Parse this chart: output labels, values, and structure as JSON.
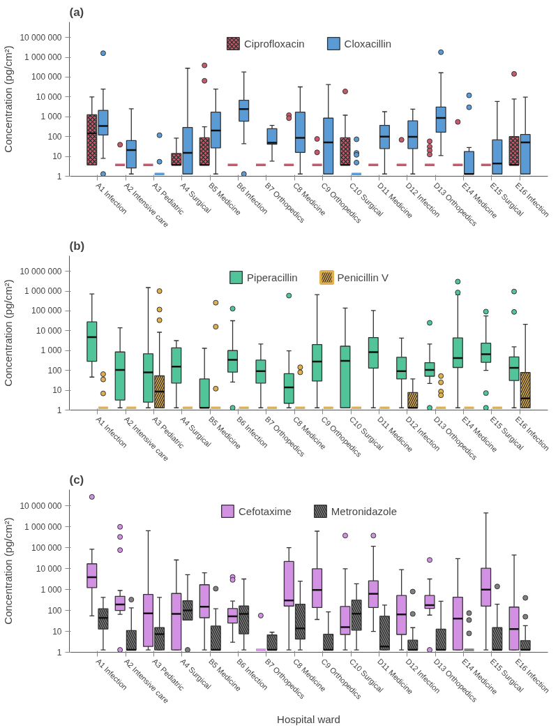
{
  "chart_data": [
    {
      "type": "box",
      "title": "(a)",
      "ylabel": "Concentration (pg/cm²)",
      "log": true,
      "grid": false,
      "legend": "top",
      "ylim": [
        1,
        60000000
      ],
      "yticks": [
        1,
        10,
        100,
        {
          "value": 1000,
          "label": "1 000"
        },
        {
          "value": 10000,
          "label": "10 000"
        },
        {
          "value": 100000,
          "label": "100 000"
        },
        {
          "value": 1000000,
          "label": "1 000 000"
        },
        {
          "value": 10000000,
          "label": "10 000 000"
        }
      ],
      "categories": [
        "A1 Infection",
        "A2 Intensive care",
        "A3 Pediatric",
        "A4 Surgical",
        "B5 Medicine",
        "B6 Infection",
        "B7 Orthopedics",
        "C8 Medicine",
        "C9 Orthopedics",
        "C10 Surgical",
        "D11 Medicine",
        "D12 Infection",
        "D13 Orthopedics",
        "E14 Medicine",
        "E15 Surgical",
        "E16 Infection"
      ],
      "series": [
        {
          "name": "Ciprofloxacin",
          "color": "#c8596a",
          "boxes": [
            {
              "low": 3.7,
              "q1": 3.7,
              "median": 145,
              "q3": 1250,
              "high": 10000
            },
            {
              "low": 3.7,
              "q1": 3.7,
              "median": 3.7,
              "q3": 3.7,
              "high": 3.7,
              "outliers": [
                39
              ]
            },
            {
              "low": 3.7,
              "q1": 3.7,
              "median": 3.7,
              "q3": 3.7,
              "high": 3.7
            },
            {
              "low": 3.7,
              "q1": 3.7,
              "median": 3.7,
              "q3": 14,
              "high": 83
            },
            {
              "low": 3.7,
              "q1": 3.7,
              "median": 3.7,
              "q3": 87,
              "high": 310,
              "outliers": [
                390000,
                65000
              ]
            },
            {
              "low": 3.7,
              "q1": 3.7,
              "median": 3.7,
              "q3": 3.7,
              "high": 3.7
            },
            {
              "low": 3.7,
              "q1": 3.7,
              "median": 3.7,
              "q3": 3.7,
              "high": 3.7
            },
            {
              "low": 3.7,
              "q1": 3.7,
              "median": 3.7,
              "q3": 3.7,
              "high": 3.7,
              "outliers": [
                1200,
                850
              ]
            },
            {
              "low": 3.7,
              "q1": 3.7,
              "median": 3.7,
              "q3": 3.7,
              "high": 3.7,
              "outliers": [
                76,
                16
              ]
            },
            {
              "low": 3.7,
              "q1": 3.7,
              "median": 3.7,
              "q3": 87,
              "high": 1200,
              "outliers": [
                19000
              ]
            },
            {
              "low": 3.7,
              "q1": 3.7,
              "median": 3.7,
              "q3": 3.7,
              "high": 3.7
            },
            {
              "low": 3.7,
              "q1": 3.7,
              "median": 3.7,
              "q3": 3.7,
              "high": 3.7,
              "outliers": [
                69
              ]
            },
            {
              "low": 3.7,
              "q1": 3.7,
              "median": 3.7,
              "q3": 3.7,
              "high": 3.7,
              "outliers": [
                58,
                31,
                20,
                12.5
              ]
            },
            {
              "low": 3.7,
              "q1": 3.7,
              "median": 3.7,
              "q3": 3.7,
              "high": 3.7,
              "outliers": [
                550
              ]
            },
            {
              "low": 3.7,
              "q1": 3.7,
              "median": 3.7,
              "q3": 3.7,
              "high": 3.7
            },
            {
              "low": 3.7,
              "q1": 3.7,
              "median": 3.7,
              "q3": 100,
              "high": 7800,
              "outliers": [
                145000
              ]
            }
          ]
        },
        {
          "name": "Cloxacillin",
          "color": "#5b9bd5",
          "boxes": [
            {
              "low": 8,
              "q1": 120,
              "median": 340,
              "q3": 2100,
              "high": 25000,
              "outliers": [
                1600000,
                1.3
              ]
            },
            {
              "low": 1.3,
              "q1": 2.6,
              "median": 21,
              "q3": 63,
              "high": 2500
            },
            {
              "low": 1.3,
              "q1": 1.3,
              "median": 1.3,
              "q3": 1.3,
              "high": 1.3,
              "outliers": [
                117,
                5.4
              ]
            },
            {
              "low": 1.3,
              "q1": 1.3,
              "median": 15,
              "q3": 290,
              "high": 280000
            },
            {
              "low": 1.3,
              "q1": 27,
              "median": 200,
              "q3": 1700,
              "high": 25000
            },
            {
              "low": 44,
              "q1": 600,
              "median": 2450,
              "q3": 6800,
              "high": 180000,
              "outliers": [
                1.3
              ]
            },
            {
              "low": 5.8,
              "q1": 41,
              "median": 49,
              "q3": 250,
              "high": 370
            },
            {
              "low": 1.3,
              "q1": 16,
              "median": 87,
              "q3": 1700,
              "high": 32000
            },
            {
              "low": 1.3,
              "q1": 1.3,
              "median": 51,
              "q3": 850,
              "high": 42000
            },
            {
              "low": 1.3,
              "q1": 1.3,
              "median": 1.3,
              "q3": 1.3,
              "high": 1.3,
              "outliers": [
                73,
                15,
                12,
                4.9
              ]
            },
            {
              "low": 1.3,
              "q1": 25,
              "median": 100,
              "q3": 370,
              "high": 1800
            },
            {
              "low": 1.3,
              "q1": 25,
              "median": 97,
              "q3": 620,
              "high": 2400
            },
            {
              "low": 11,
              "q1": 166,
              "median": 870,
              "q3": 3100,
              "high": 165000,
              "outliers": [
                1800000
              ]
            },
            {
              "low": 1.3,
              "q1": 1.3,
              "median": 1.3,
              "q3": 17.6,
              "high": 28,
              "outliers": [
                12000,
                3000
              ]
            },
            {
              "low": 1.3,
              "q1": 1.3,
              "median": 4.4,
              "q3": 68,
              "high": 5900
            },
            {
              "low": 1.3,
              "q1": 1.3,
              "median": 51,
              "q3": 128,
              "high": 9800
            }
          ]
        }
      ]
    },
    {
      "type": "box",
      "title": "(b)",
      "ylabel": "Concentration (pg/cm²)",
      "log": true,
      "grid": false,
      "legend": "top",
      "ylim": [
        1,
        60000000
      ],
      "yticks": [
        1,
        10,
        100,
        {
          "value": 1000,
          "label": "1 000"
        },
        {
          "value": 10000,
          "label": "10 000"
        },
        {
          "value": 100000,
          "label": "100 000"
        },
        {
          "value": 1000000,
          "label": "1 000 000"
        },
        {
          "value": 10000000,
          "label": "10 000 000"
        }
      ],
      "categories": [
        "A1 Infection",
        "A2 Intensive care",
        "A3 Pediatric",
        "A4 Surgical",
        "B5 Medicine",
        "B6 Infection",
        "B7 Orthopedics",
        "C8 Medicine",
        "C9 Orthopedics",
        "C10 Surgical",
        "D11 Medicine",
        "D12 Infection",
        "D13 Orthopedics",
        "E14 Medicine",
        "E15 Surgical",
        "E16 Infection"
      ],
      "series": [
        {
          "name": "Piperacillin",
          "color": "#52c49a",
          "boxes": [
            {
              "low": 46,
              "q1": 290,
              "median": 4800,
              "q3": 28000,
              "high": 720000
            },
            {
              "low": 1.3,
              "q1": 3.2,
              "median": 105,
              "q3": 850,
              "high": 14000
            },
            {
              "low": 1.3,
              "q1": 2.5,
              "median": 80,
              "q3": 690,
              "high": 1500000
            },
            {
              "low": 1.3,
              "q1": 23,
              "median": 155,
              "q3": 1380,
              "high": 3170
            },
            {
              "low": 1.3,
              "q1": 1.3,
              "median": 1.3,
              "q3": 37,
              "high": 1300
            },
            {
              "low": 26,
              "q1": 82,
              "median": 340,
              "q3": 1000,
              "high": 32000,
              "outliers": [
                130000,
                1.3
              ]
            },
            {
              "low": 1.3,
              "q1": 23,
              "median": 92,
              "q3": 330,
              "high": 2150
            },
            {
              "low": 1.3,
              "q1": 2.2,
              "median": 14,
              "q3": 68,
              "high": 970,
              "outliers": [
                590000
              ]
            },
            {
              "low": 1.3,
              "q1": 29,
              "median": 280,
              "q3": 2000,
              "high": 660000
            },
            {
              "low": 1.3,
              "q1": 1.3,
              "median": 300,
              "q3": 1660,
              "high": 138000
            },
            {
              "low": 1.3,
              "q1": 130,
              "median": 830,
              "q3": 4550,
              "high": 105000
            },
            {
              "low": 1.3,
              "q1": 37,
              "median": 92,
              "q3": 460,
              "high": 4250
            },
            {
              "low": 22,
              "q1": 51,
              "median": 105,
              "q3": 245,
              "high": 2150,
              "outliers": [
                25000,
                1.3
              ]
            },
            {
              "low": 1.3,
              "q1": 140,
              "median": 420,
              "q3": 4350,
              "high": 660000,
              "outliers": [
                3000000,
                850000
              ]
            },
            {
              "low": 100,
              "q1": 255,
              "median": 650,
              "q3": 2350,
              "high": 56000,
              "outliers": [
                92000,
                7.2,
                1.3
              ]
            },
            {
              "low": 1.3,
              "q1": 31,
              "median": 135,
              "q3": 480,
              "high": 1540,
              "outliers": [
                950000,
                89000
              ]
            }
          ]
        },
        {
          "name": "Penicillin V",
          "color": "#e0b050",
          "boxes": [
            {
              "low": 1.3,
              "q1": 1.3,
              "median": 1.3,
              "q3": 1.3,
              "high": 1.3,
              "outliers": [
                65,
                35,
                6.9
              ]
            },
            {
              "low": 1.3,
              "q1": 1.3,
              "median": 1.3,
              "q3": 1.3,
              "high": 1.3
            },
            {
              "low": 1.3,
              "q1": 1.3,
              "median": 8.6,
              "q3": 53,
              "high": 8400,
              "outliers": [
                1000000,
                117000,
                34000
              ]
            },
            {
              "low": 1.3,
              "q1": 1.3,
              "median": 1.3,
              "q3": 1.3,
              "high": 1.3
            },
            {
              "low": 1.3,
              "q1": 1.3,
              "median": 1.3,
              "q3": 1.3,
              "high": 1.3,
              "outliers": [
                260000,
                16000,
                12
              ]
            },
            {
              "low": 1.3,
              "q1": 1.3,
              "median": 1.3,
              "q3": 1.3,
              "high": 1.3
            },
            {
              "low": 1.3,
              "q1": 1.3,
              "median": 1.3,
              "q3": 1.3,
              "high": 1.3
            },
            {
              "low": 1.3,
              "q1": 1.3,
              "median": 1.3,
              "q3": 1.3,
              "high": 1.3,
              "outliers": [
                144,
                80
              ]
            },
            {
              "low": 1.3,
              "q1": 1.3,
              "median": 1.3,
              "q3": 1.3,
              "high": 1.3
            },
            {
              "low": 1.3,
              "q1": 1.3,
              "median": 1.3,
              "q3": 1.3,
              "high": 1.3
            },
            {
              "low": 1.3,
              "q1": 1.3,
              "median": 1.3,
              "q3": 1.3,
              "high": 1.3
            },
            {
              "low": 1.3,
              "q1": 1.3,
              "median": 1.3,
              "q3": 7.7,
              "high": 37
            },
            {
              "low": 1.3,
              "q1": 1.3,
              "median": 1.3,
              "q3": 1.3,
              "high": 1.3,
              "outliers": [
                52,
                25,
                8.6,
                5.6
              ]
            },
            {
              "low": 1.3,
              "q1": 1.3,
              "median": 1.3,
              "q3": 1.3,
              "high": 1.3
            },
            {
              "low": 1.3,
              "q1": 1.3,
              "median": 1.3,
              "q3": 1.3,
              "high": 1.3
            },
            {
              "low": 1.3,
              "q1": 1.3,
              "median": 3.9,
              "q3": 78,
              "high": 21000
            }
          ]
        }
      ]
    },
    {
      "type": "box",
      "title": "(c)",
      "ylabel": "Concentration (pg/cm²)",
      "xlabel": "Hospital ward",
      "log": true,
      "grid": false,
      "legend": "top",
      "ylim": [
        1,
        60000000
      ],
      "yticks": [
        1,
        10,
        100,
        {
          "value": 1000,
          "label": "1 000"
        },
        {
          "value": 10000,
          "label": "10 000"
        },
        {
          "value": 100000,
          "label": "100 000"
        },
        {
          "value": 1000000,
          "label": "1 000 000"
        },
        {
          "value": 10000000,
          "label": "10 000 000"
        }
      ],
      "categories": [
        "A1 Infection",
        "A2 Intensive care",
        "A3 Pediatric",
        "A4 Surgical",
        "B5 Medicine",
        "B6 Infection",
        "B7 Orthopedics",
        "C8 Medicine",
        "C9 Orthopedics",
        "C10 Surgical",
        "D11 Medicine",
        "D12 Infection",
        "D13 Orthopedics",
        "E14 Medicine",
        "E15 Surgical",
        "E16 Infection"
      ],
      "series": [
        {
          "name": "Cefotaxime",
          "color": "#d291e3",
          "boxes": [
            {
              "low": 55,
              "q1": 1230,
              "median": 3900,
              "q3": 17000,
              "high": 85000,
              "outliers": [
                27000000
              ]
            },
            {
              "low": 65,
              "q1": 100,
              "median": 195,
              "q3": 475,
              "high": 900,
              "outliers": [
                1000000,
                330000,
                77000,
                1.3
              ]
            },
            {
              "low": 1.3,
              "q1": 1.9,
              "median": 72,
              "q3": 580,
              "high": 650000
            },
            {
              "low": 1.3,
              "q1": 1.3,
              "median": 69,
              "q3": 650,
              "high": 26000
            },
            {
              "low": 1.3,
              "q1": 45,
              "median": 150,
              "q3": 1700,
              "high": 6300
            },
            {
              "low": 3,
              "q1": 25,
              "median": 52,
              "q3": 124,
              "high": 280,
              "outliers": [
                4000,
                2900
              ]
            },
            {
              "low": 1.3,
              "q1": 1.3,
              "median": 1.3,
              "q3": 1.3,
              "high": 1.3,
              "outliers": [
                57
              ]
            },
            {
              "low": 1.3,
              "q1": 163,
              "median": 300,
              "q3": 22000,
              "high": 100000
            },
            {
              "low": 37,
              "q1": 138,
              "median": 950,
              "q3": 9800,
              "high": 620000
            },
            {
              "low": 1.3,
              "q1": 7.1,
              "median": 16,
              "q3": 155,
              "high": 9800,
              "outliers": [
                380000
              ]
            },
            {
              "low": 10,
              "q1": 138,
              "median": 630,
              "q3": 2600,
              "high": 117000,
              "outliers": [
                380000
              ]
            },
            {
              "low": 1.3,
              "q1": 7.1,
              "median": 65,
              "q3": 520,
              "high": 9000
            },
            {
              "low": 60,
              "q1": 125,
              "median": 180,
              "q3": 520,
              "high": 3200,
              "outliers": [
                26000,
                1.3
              ]
            },
            {
              "low": 1.3,
              "q1": 1.3,
              "median": 41,
              "q3": 430,
              "high": 30000
            },
            {
              "low": 1.3,
              "q1": 160,
              "median": 1000,
              "q3": 10400,
              "high": 4600000
            },
            {
              "low": 1.3,
              "q1": 1.3,
              "median": 13,
              "q3": 145,
              "high": 45000
            }
          ]
        },
        {
          "name": "Metronidazole",
          "color": "#808080",
          "boxes": [
            {
              "low": 1.3,
              "q1": 13,
              "median": 44,
              "q3": 120,
              "high": 420
            },
            {
              "low": 1.3,
              "q1": 1.3,
              "median": 1.3,
              "q3": 11,
              "high": 133,
              "outliers": [
                330
              ]
            },
            {
              "low": 1.3,
              "q1": 1.3,
              "median": 7.4,
              "q3": 15,
              "high": 420
            },
            {
              "low": 35,
              "q1": 35,
              "median": 100,
              "q3": 290,
              "high": 5100,
              "outliers": [
                1.3
              ]
            },
            {
              "low": 1.3,
              "q1": 1.3,
              "median": 1.3,
              "q3": 18,
              "high": 120,
              "outliers": [
                1100
              ]
            },
            {
              "low": 1.3,
              "q1": 7.6,
              "median": 69,
              "q3": 163,
              "high": 3200
            },
            {
              "low": 1.3,
              "q1": 1.3,
              "median": 1.3,
              "q3": 6.7,
              "high": 9.1
            },
            {
              "low": 1.3,
              "q1": 4.3,
              "median": 14,
              "q3": 200,
              "high": 2500
            },
            {
              "low": 1.3,
              "q1": 1.3,
              "median": 1.3,
              "q3": 7.3,
              "high": 85
            },
            {
              "low": 1.3,
              "q1": 11.4,
              "median": 70,
              "q3": 310,
              "high": 1900
            },
            {
              "low": 1.3,
              "q1": 1.3,
              "median": 1.9,
              "q3": 53,
              "high": 180
            },
            {
              "low": 1.3,
              "q1": 1.3,
              "median": 1.3,
              "q3": 3.8,
              "high": 15,
              "outliers": [
                800,
                68
              ]
            },
            {
              "low": 1.3,
              "q1": 1.3,
              "median": 1.3,
              "q3": 12.7,
              "high": 275
            },
            {
              "low": 1.3,
              "q1": 1.3,
              "median": 1.3,
              "q3": 1.3,
              "high": 1.3,
              "outliers": [
                75,
                35,
                8
              ]
            },
            {
              "low": 1.3,
              "q1": 1.3,
              "median": 1.3,
              "q3": 15,
              "high": 200,
              "outliers": [
                1400
              ]
            },
            {
              "low": 1.3,
              "q1": 1.3,
              "median": 1.3,
              "q3": 3.6,
              "high": 18.6,
              "outliers": [
                400,
                50
              ]
            }
          ]
        }
      ]
    }
  ]
}
